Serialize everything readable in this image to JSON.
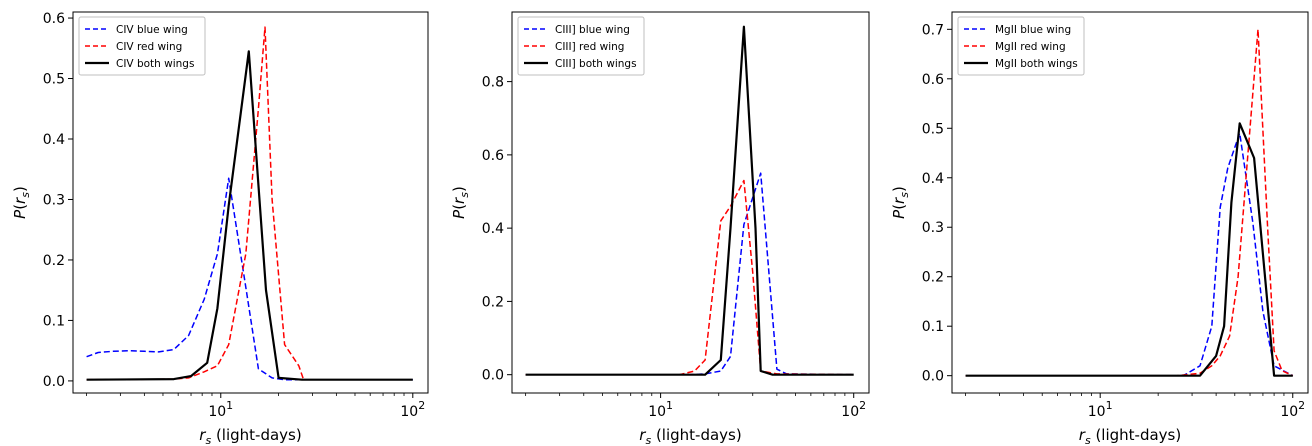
{
  "chart_data": [
    {
      "type": "line",
      "xscale": "log",
      "xlim": [
        1.7,
        120
      ],
      "ylim": [
        -0.02,
        0.61
      ],
      "xticks": [
        10,
        100
      ],
      "xtick_labels": [
        "10^1",
        "10^2"
      ],
      "yticks": [
        0.0,
        0.1,
        0.2,
        0.3,
        0.4,
        0.5,
        0.6
      ],
      "ytick_labels": [
        "0.0",
        "0.1",
        "0.2",
        "0.3",
        "0.4",
        "0.5",
        "0.6"
      ],
      "xlabel": "r_s (light-days)",
      "ylabel": "P(r_s)",
      "legend": "top-left",
      "grid": false,
      "series": [
        {
          "name": "CIV blue wing",
          "color": "#0000ff",
          "dash": "dashed",
          "x": [
            2.0,
            2.3,
            2.75,
            3.3,
            4.0,
            4.75,
            5.7,
            6.8,
            8.2,
            9.6,
            11.0,
            13.5,
            15.7,
            18.5,
            21.5,
            100
          ],
          "y": [
            0.04,
            0.047,
            0.049,
            0.05,
            0.049,
            0.048,
            0.052,
            0.075,
            0.135,
            0.21,
            0.335,
            0.155,
            0.02,
            0.005,
            0.002,
            0.002
          ]
        },
        {
          "name": "CIV red wing",
          "color": "#ff0000",
          "dash": "dashed",
          "x": [
            2.0,
            5.7,
            6.8,
            8.2,
            9.6,
            11.0,
            13.5,
            15.7,
            17.0,
            18.5,
            21.5,
            25.5,
            27.0,
            100
          ],
          "y": [
            0.002,
            0.003,
            0.005,
            0.015,
            0.025,
            0.06,
            0.21,
            0.45,
            0.585,
            0.3,
            0.06,
            0.025,
            0.002,
            0.002
          ]
        },
        {
          "name": "CIV both wings",
          "color": "#000000",
          "dash": "solid",
          "x": [
            2.0,
            5.7,
            7.0,
            8.5,
            9.6,
            11.0,
            14.0,
            17.2,
            20.0,
            26.5,
            100
          ],
          "y": [
            0.002,
            0.003,
            0.008,
            0.03,
            0.12,
            0.29,
            0.545,
            0.15,
            0.005,
            0.002,
            0.002
          ]
        }
      ]
    },
    {
      "type": "line",
      "xscale": "log",
      "xlim": [
        1.7,
        120
      ],
      "ylim": [
        -0.05,
        0.99
      ],
      "xticks": [
        10,
        100
      ],
      "xtick_labels": [
        "10^1",
        "10^2"
      ],
      "yticks": [
        0.0,
        0.2,
        0.4,
        0.6,
        0.8
      ],
      "ytick_labels": [
        "0.0",
        "0.2",
        "0.4",
        "0.6",
        "0.8"
      ],
      "xlabel": "r_s (light-days)",
      "ylabel": "P(r_s)",
      "legend": "top-left",
      "grid": false,
      "series": [
        {
          "name": "CIII] blue wing",
          "color": "#0000ff",
          "dash": "dashed",
          "x": [
            2.0,
            14.0,
            17.0,
            20.5,
            23.0,
            27.0,
            33.0,
            40.0,
            45.0,
            100
          ],
          "y": [
            0.0,
            0.0,
            0.002,
            0.01,
            0.05,
            0.41,
            0.55,
            0.015,
            0.002,
            0.0
          ]
        },
        {
          "name": "CIII] red wing",
          "color": "#ff0000",
          "dash": "dashed",
          "x": [
            2.0,
            12.5,
            15.0,
            17.0,
            20.5,
            23.0,
            27.0,
            30.0,
            33.0,
            40.0,
            100
          ],
          "y": [
            0.0,
            0.0,
            0.01,
            0.04,
            0.42,
            0.46,
            0.53,
            0.28,
            0.01,
            0.002,
            0.0
          ]
        },
        {
          "name": "CIII] both wings",
          "color": "#000000",
          "dash": "solid",
          "x": [
            2.0,
            17.0,
            20.5,
            23.0,
            27.0,
            31.0,
            33.0,
            38.0,
            100
          ],
          "y": [
            0.0,
            0.0,
            0.04,
            0.4,
            0.95,
            0.4,
            0.01,
            0.0,
            0.0
          ]
        }
      ]
    },
    {
      "type": "line",
      "xscale": "log",
      "xlim": [
        1.7,
        120
      ],
      "ylim": [
        -0.035,
        0.735
      ],
      "xticks": [
        10,
        100
      ],
      "xtick_labels": [
        "10^1",
        "10^2"
      ],
      "yticks": [
        0.0,
        0.1,
        0.2,
        0.3,
        0.4,
        0.5,
        0.6,
        0.7
      ],
      "ytick_labels": [
        "0.0",
        "0.1",
        "0.2",
        "0.3",
        "0.4",
        "0.5",
        "0.6",
        "0.7"
      ],
      "xlabel": "r_s (light-days)",
      "ylabel": "P(r_s)",
      "legend": "top-left",
      "grid": false,
      "series": [
        {
          "name": "MgII blue wing",
          "color": "#0000ff",
          "dash": "dashed",
          "x": [
            2.0,
            27.0,
            33.0,
            38.0,
            42.0,
            46.0,
            53.0,
            62.0,
            70.0,
            80.0,
            100
          ],
          "y": [
            0.0,
            0.0,
            0.02,
            0.1,
            0.34,
            0.42,
            0.49,
            0.31,
            0.13,
            0.02,
            0.0
          ]
        },
        {
          "name": "MgII red wing",
          "color": "#ff0000",
          "dash": "dashed",
          "x": [
            2.0,
            25.0,
            33.0,
            38.0,
            42.0,
            47.0,
            52.0,
            58.0,
            66.0,
            74.0,
            80.0,
            88.0,
            100
          ],
          "y": [
            0.0,
            0.0,
            0.005,
            0.02,
            0.04,
            0.08,
            0.2,
            0.43,
            0.7,
            0.3,
            0.05,
            0.01,
            0.0
          ]
        },
        {
          "name": "MgII both wings",
          "color": "#000000",
          "dash": "solid",
          "x": [
            2.0,
            33.0,
            40.0,
            44.0,
            48.0,
            53.0,
            63.0,
            80.0,
            100
          ],
          "y": [
            0.0,
            0.0,
            0.04,
            0.1,
            0.35,
            0.51,
            0.44,
            0.0,
            0.0
          ]
        }
      ]
    }
  ]
}
